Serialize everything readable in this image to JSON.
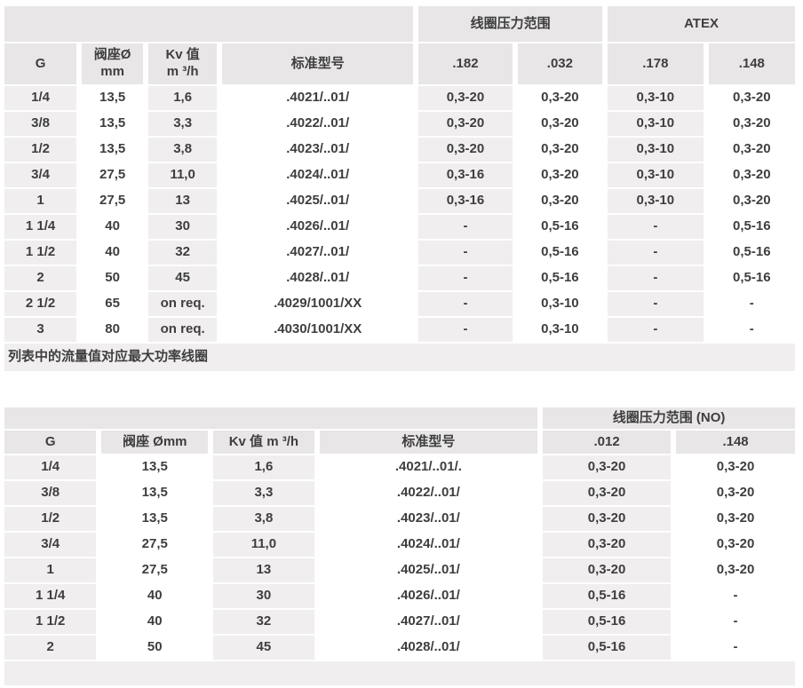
{
  "colors": {
    "page_bg": "#ffffff",
    "header_bg": "#e8e6e6",
    "stripe_bg": "#f0eeee",
    "text": "#3f3e3e"
  },
  "table1": {
    "group_headers": [
      {
        "label": "",
        "span": 4
      },
      {
        "label": "线圈压力范围",
        "span": 2
      },
      {
        "label": "ATEX",
        "span": 2
      }
    ],
    "columns": [
      "G",
      "阀座Ø\nmm",
      "Kv 值\nm ³/h",
      "标准型号",
      ".182",
      ".032",
      ".178",
      ".148"
    ],
    "rows": [
      [
        "1/4",
        "13,5",
        "1,6",
        ".4021/..01/",
        "0,3-20",
        "0,3-20",
        "0,3-10",
        "0,3-20"
      ],
      [
        "3/8",
        "13,5",
        "3,3",
        ".4022/..01/",
        "0,3-20",
        "0,3-20",
        "0,3-10",
        "0,3-20"
      ],
      [
        "1/2",
        "13,5",
        "3,8",
        ".4023/..01/",
        "0,3-20",
        "0,3-20",
        "0,3-10",
        "0,3-20"
      ],
      [
        "3/4",
        "27,5",
        "11,0",
        ".4024/..01/",
        "0,3-16",
        "0,3-20",
        "0,3-10",
        "0,3-20"
      ],
      [
        "1",
        "27,5",
        "13",
        ".4025/..01/",
        "0,3-16",
        "0,3-20",
        "0,3-10",
        "0,3-20"
      ],
      [
        "1 1/4",
        "40",
        "30",
        ".4026/..01/",
        "-",
        "0,5-16",
        "-",
        "0,5-16"
      ],
      [
        "1 1/2",
        "40",
        "32",
        ".4027/..01/",
        "-",
        "0,5-16",
        "-",
        "0,5-16"
      ],
      [
        "2",
        "50",
        "45",
        ".4028/..01/",
        "-",
        "0,5-16",
        "-",
        "0,5-16"
      ],
      [
        "2 1/2",
        "65",
        "on req.",
        ".4029/1001/XX",
        "-",
        "0,3-10",
        "-",
        "-"
      ],
      [
        "3",
        "80",
        "on req.",
        ".4030/1001/XX",
        "-",
        "0,3-10",
        "-",
        "-"
      ]
    ],
    "footnote": "列表中的流量值对应最大功率线圈"
  },
  "table2": {
    "group_headers": [
      {
        "label": "",
        "span": 4
      },
      {
        "label": "线圈压力范围 (NO)",
        "span": 2
      }
    ],
    "columns": [
      "G",
      "阀座 Ømm",
      "Kv 值 m ³/h",
      "标准型号",
      ".012",
      ".148"
    ],
    "rows": [
      [
        "1/4",
        "13,5",
        "1,6",
        ".4021/..01/.",
        "0,3-20",
        "0,3-20"
      ],
      [
        "3/8",
        "13,5",
        "3,3",
        ".4022/..01/",
        "0,3-20",
        "0,3-20"
      ],
      [
        "1/2",
        "13,5",
        "3,8",
        ".4023/..01/",
        "0,3-20",
        "0,3-20"
      ],
      [
        "3/4",
        "27,5",
        "11,0",
        ".4024/..01/",
        "0,3-20",
        "0,3-20"
      ],
      [
        "1",
        "27,5",
        "13",
        ".4025/..01/",
        "0,3-20",
        "0,3-20"
      ],
      [
        "1 1/4",
        "40",
        "30",
        ".4026/..01/",
        "0,5-16",
        "-"
      ],
      [
        "1 1/2",
        "40",
        "32",
        ".4027/..01/",
        "0,5-16",
        "-"
      ],
      [
        "2",
        "50",
        "45",
        ".4028/..01/",
        "0,5-16",
        "-"
      ]
    ],
    "footnote": ""
  }
}
